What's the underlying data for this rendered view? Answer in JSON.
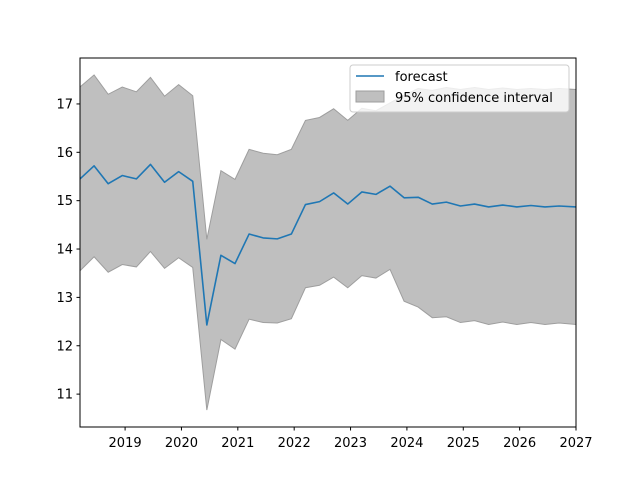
{
  "chart_data": {
    "type": "line",
    "title": "",
    "xlabel": "",
    "ylabel": "",
    "xlim": [
      2018.2,
      2027.0
    ],
    "ylim": [
      10.32,
      17.95
    ],
    "x_ticks": [
      2019,
      2020,
      2021,
      2022,
      2023,
      2024,
      2025,
      2026,
      2027
    ],
    "y_ticks": [
      11,
      12,
      13,
      14,
      15,
      16,
      17
    ],
    "grid": false,
    "legend_position": "top-right",
    "colors": {
      "line": "#1f77b4",
      "band_fill": "#bfbfbf",
      "band_edge": "#9e9e9e"
    },
    "legend": [
      {
        "label": "forecast",
        "kind": "line"
      },
      {
        "label": "95% confidence interval",
        "kind": "patch"
      }
    ],
    "x": [
      2018.2,
      2018.45,
      2018.7,
      2018.95,
      2019.2,
      2019.45,
      2019.7,
      2019.95,
      2020.2,
      2020.45,
      2020.7,
      2020.95,
      2021.2,
      2021.45,
      2021.7,
      2021.95,
      2022.2,
      2022.45,
      2022.7,
      2022.95,
      2023.2,
      2023.45,
      2023.7,
      2023.95,
      2024.2,
      2024.45,
      2024.7,
      2024.95,
      2025.2,
      2025.45,
      2025.7,
      2025.95,
      2026.2,
      2026.45,
      2026.7,
      2027.0
    ],
    "series": [
      {
        "name": "forecast",
        "values": [
          15.45,
          15.72,
          15.35,
          15.52,
          15.45,
          15.75,
          15.38,
          15.6,
          15.4,
          12.43,
          13.87,
          13.7,
          14.31,
          14.23,
          14.21,
          14.31,
          14.92,
          14.98,
          15.16,
          14.93,
          15.18,
          15.13,
          15.3,
          15.06,
          15.07,
          14.93,
          14.97,
          14.89,
          14.93,
          14.87,
          14.91,
          14.87,
          14.9,
          14.87,
          14.89,
          14.87
        ]
      },
      {
        "name": "95% confidence interval lower",
        "values": [
          13.55,
          13.84,
          13.52,
          13.68,
          13.63,
          13.95,
          13.6,
          13.82,
          13.62,
          10.67,
          12.13,
          11.93,
          12.55,
          12.48,
          12.47,
          12.56,
          13.2,
          13.25,
          13.42,
          13.2,
          13.45,
          13.4,
          13.58,
          12.92,
          12.8,
          12.58,
          12.6,
          12.48,
          12.52,
          12.44,
          12.49,
          12.44,
          12.48,
          12.44,
          12.47,
          12.44
        ]
      },
      {
        "name": "95% confidence interval upper",
        "values": [
          17.35,
          17.6,
          17.2,
          17.35,
          17.25,
          17.55,
          17.16,
          17.4,
          17.17,
          14.2,
          15.62,
          15.44,
          16.06,
          15.98,
          15.95,
          16.06,
          16.66,
          16.72,
          16.9,
          16.66,
          16.91,
          16.86,
          17.02,
          17.18,
          17.32,
          17.28,
          17.34,
          17.3,
          17.34,
          17.3,
          17.33,
          17.3,
          17.32,
          17.3,
          17.32,
          17.3
        ]
      }
    ]
  }
}
